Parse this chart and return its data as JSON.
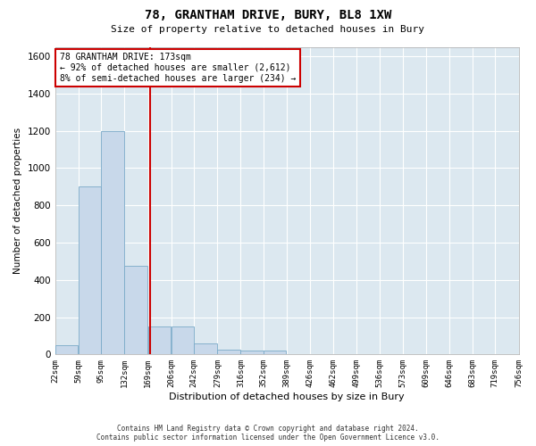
{
  "title1": "78, GRANTHAM DRIVE, BURY, BL8 1XW",
  "title2": "Size of property relative to detached houses in Bury",
  "xlabel": "Distribution of detached houses by size in Bury",
  "ylabel": "Number of detached properties",
  "annotation_line1": "78 GRANTHAM DRIVE: 173sqm",
  "annotation_line2": "← 92% of detached houses are smaller (2,612)",
  "annotation_line3": "8% of semi-detached houses are larger (234) →",
  "property_size": 173,
  "bar_color": "#c8d8ea",
  "bar_edge_color": "#7aaac8",
  "vline_color": "#cc0000",
  "annotation_box_color": "#cc0000",
  "fig_background_color": "#ffffff",
  "plot_background_color": "#dce8f0",
  "grid_color": "#ffffff",
  "bins": [
    22,
    59,
    95,
    132,
    169,
    206,
    242,
    279,
    316,
    352,
    389,
    426,
    462,
    499,
    536,
    573,
    609,
    646,
    683,
    719,
    756
  ],
  "bin_labels": [
    "22sqm",
    "59sqm",
    "95sqm",
    "132sqm",
    "169sqm",
    "206sqm",
    "242sqm",
    "279sqm",
    "316sqm",
    "352sqm",
    "389sqm",
    "426sqm",
    "462sqm",
    "499sqm",
    "536sqm",
    "573sqm",
    "609sqm",
    "646sqm",
    "683sqm",
    "719sqm",
    "756sqm"
  ],
  "heights": [
    50,
    900,
    1200,
    475,
    150,
    150,
    60,
    25,
    20,
    20,
    0,
    0,
    0,
    0,
    0,
    0,
    0,
    0,
    0,
    0
  ],
  "ylim": [
    0,
    1650
  ],
  "yticks": [
    0,
    200,
    400,
    600,
    800,
    1000,
    1200,
    1400,
    1600
  ],
  "footer_line1": "Contains HM Land Registry data © Crown copyright and database right 2024.",
  "footer_line2": "Contains public sector information licensed under the Open Government Licence v3.0."
}
